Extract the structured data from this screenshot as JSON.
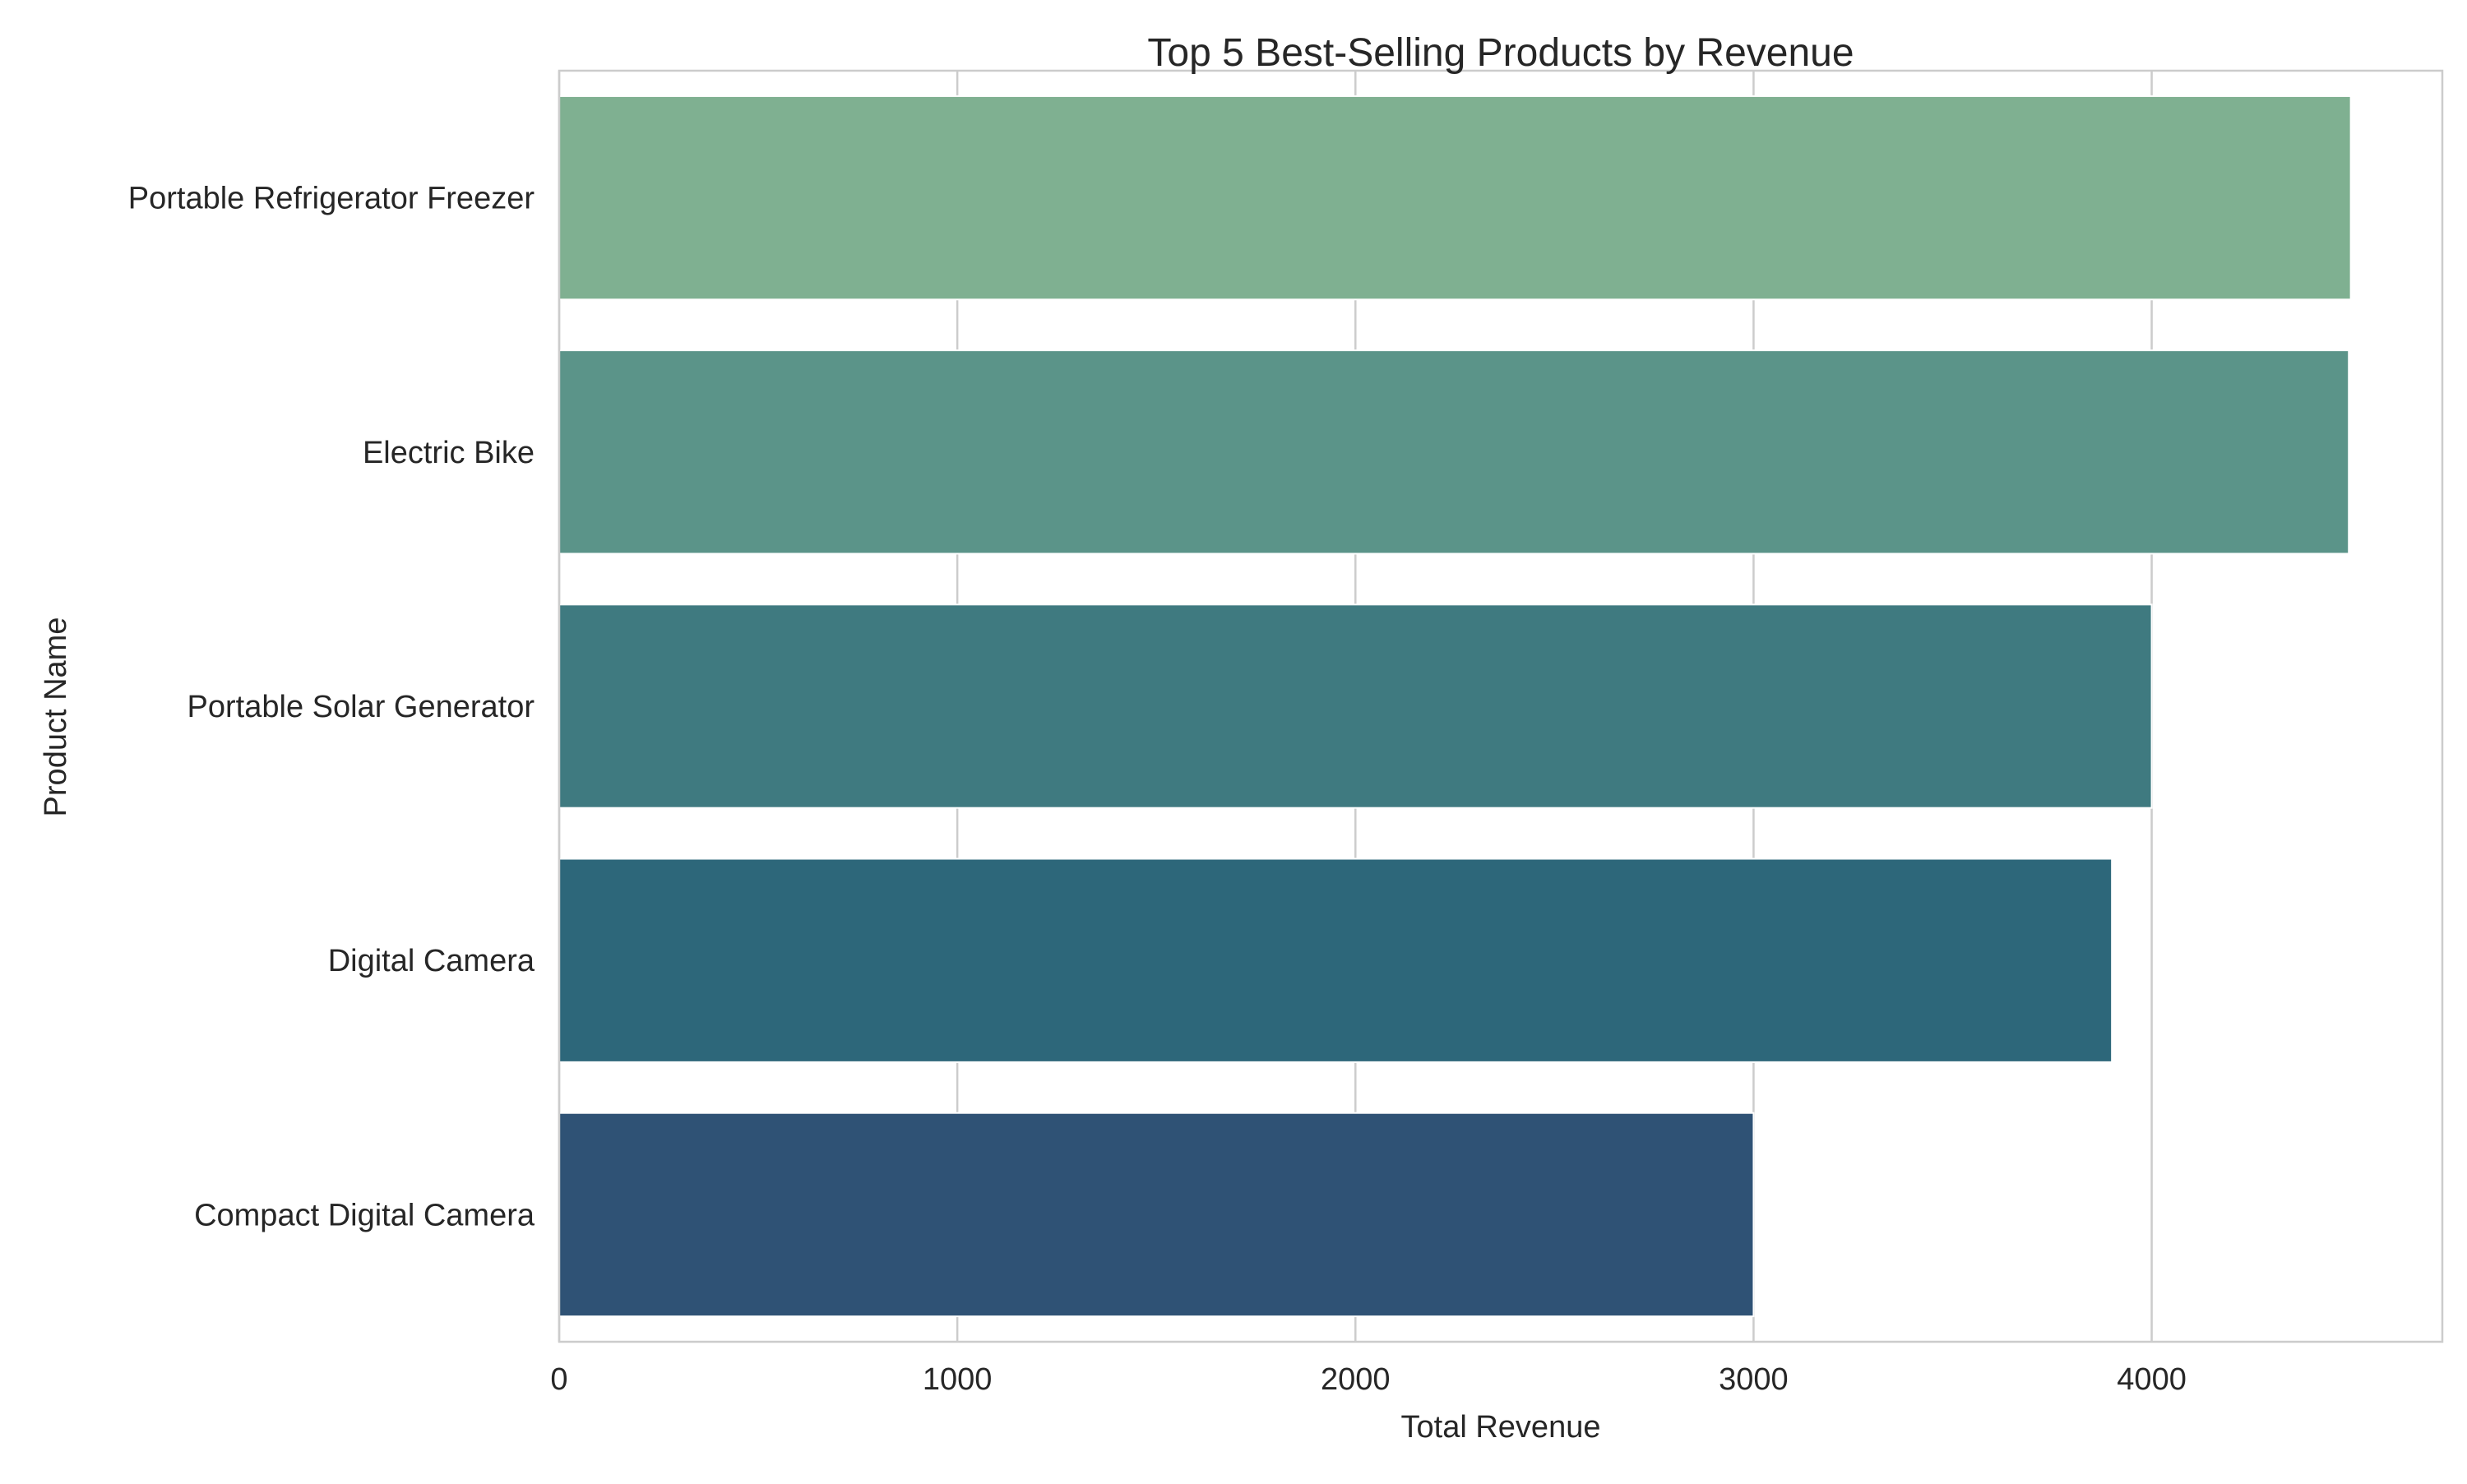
{
  "chart_data": {
    "type": "bar",
    "orientation": "horizontal",
    "title": "Top 5 Best-Selling Products by Revenue",
    "xlabel": "Total Revenue",
    "ylabel": "Product Name",
    "categories": [
      "Portable Refrigerator Freezer",
      "Electric Bike",
      "Portable Solar Generator",
      "Digital Camera",
      "Compact Digital Camera"
    ],
    "values": [
      4500,
      4495,
      4000,
      3900,
      3000
    ],
    "colors": [
      "#7fb091",
      "#5b9489",
      "#3f7a80",
      "#2d677a",
      "#2f5275"
    ],
    "xlim": [
      0,
      4730
    ],
    "xticks": [
      0,
      1000,
      2000,
      3000,
      4000
    ],
    "xtick_labels": [
      "0",
      "1000",
      "2000",
      "3000",
      "4000"
    ],
    "grid": true,
    "grid_axis": "x"
  }
}
